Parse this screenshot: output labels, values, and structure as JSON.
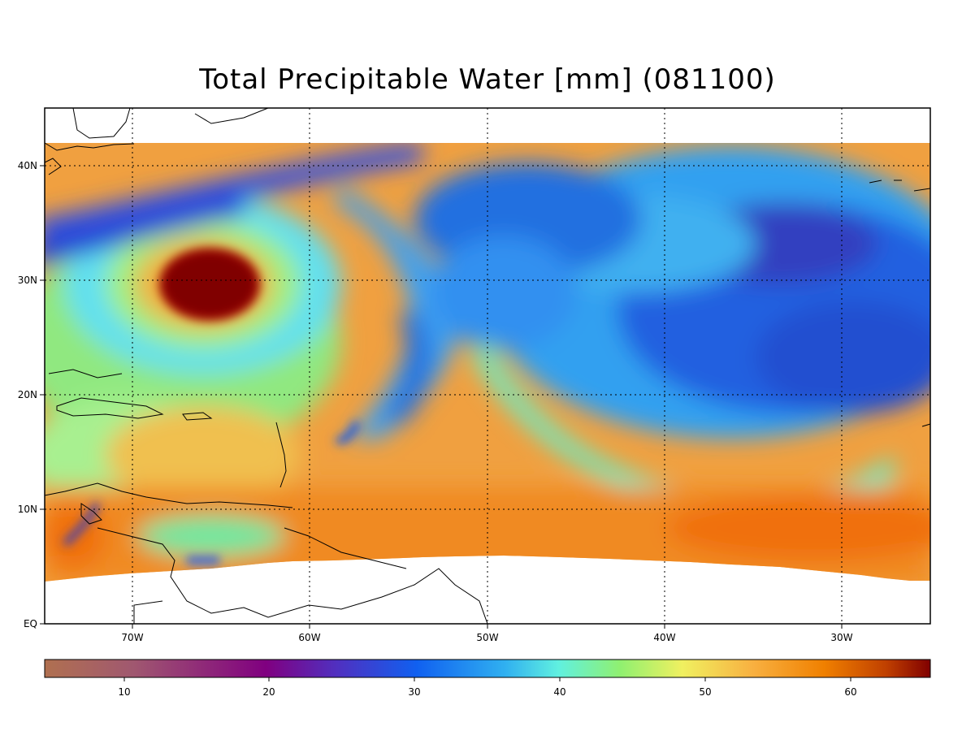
{
  "title": "Total Precipitable Water [mm]  (081100)",
  "map": {
    "lon_range": [
      -75,
      -25
    ],
    "lat_range": [
      0,
      45
    ],
    "data_lat_north": 42,
    "longitude_labels": [
      "70W",
      "60W",
      "50W",
      "40W",
      "30W"
    ],
    "latitude_labels": [
      "40N",
      "30N",
      "20N",
      "10N",
      "EQ"
    ],
    "grid_lines": "dotted"
  },
  "colorbar": {
    "range": [
      5,
      66
    ],
    "tick_labels": [
      "10",
      "20",
      "30",
      "40",
      "50",
      "60"
    ],
    "colors": [
      "#b07050",
      "#a05870",
      "#800080",
      "#5030c0",
      "#1060f0",
      "#30b0f0",
      "#60f0e0",
      "#90f070",
      "#f0f060",
      "#f8b040",
      "#f08000",
      "#c04000",
      "#800000"
    ]
  }
}
